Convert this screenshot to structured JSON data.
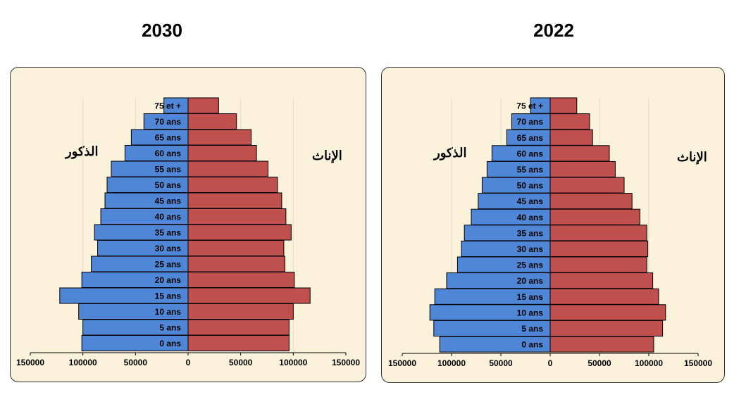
{
  "charts_meta": {
    "male_label": "الذكور",
    "female_label": "الإناث",
    "male_color": "#4f86d6",
    "female_color": "#c0504d",
    "background": "#fbf2dc"
  },
  "chart_data": [
    {
      "type": "bar",
      "orientation": "population-pyramid",
      "title": "2030",
      "categories": [
        "0 ans",
        "5 ans",
        "10 ans",
        "15 ans",
        "20 ans",
        "25 ans",
        "30 ans",
        "35 ans",
        "40 ans",
        "45 ans",
        "50 ans",
        "55 ans",
        "60 ans",
        "65 ans",
        "70 ans",
        "75 et +"
      ],
      "series": [
        {
          "name": "الذكور",
          "values": [
            101000,
            100000,
            104000,
            122000,
            101000,
            92000,
            86000,
            89000,
            83000,
            79000,
            77000,
            73000,
            60000,
            54000,
            42000,
            23000
          ]
        },
        {
          "name": "الإناث",
          "values": [
            96000,
            96000,
            100000,
            116000,
            101000,
            92000,
            91000,
            98000,
            93000,
            89000,
            85000,
            76000,
            65000,
            60000,
            46000,
            29000
          ]
        }
      ],
      "xticks": [
        "150000",
        "100000",
        "50000",
        "0",
        "50000",
        "100000",
        "150000"
      ],
      "xlim": [
        -150000,
        150000
      ]
    },
    {
      "type": "bar",
      "orientation": "population-pyramid",
      "title": "2022",
      "categories": [
        "0 ans",
        "5 ans",
        "10 ans",
        "15 ans",
        "20 ans",
        "25 ans",
        "30 ans",
        "35 ans",
        "40 ans",
        "45 ans",
        "50 ans",
        "55 ans",
        "60 ans",
        "65 ans",
        "70 ans",
        "75 et +"
      ],
      "series": [
        {
          "name": "الذكور",
          "values": [
            112000,
            118000,
            122000,
            117000,
            105000,
            94000,
            90000,
            87000,
            80000,
            73000,
            69000,
            64000,
            59000,
            44000,
            39000,
            20000
          ]
        },
        {
          "name": "الإناث",
          "values": [
            105000,
            114000,
            117000,
            110000,
            104000,
            98000,
            99000,
            98000,
            91000,
            83000,
            75000,
            66000,
            60000,
            43000,
            40000,
            27000
          ]
        }
      ],
      "xticks": [
        "150000",
        "100000",
        "50000",
        "0",
        "50000",
        "100000",
        "150000"
      ],
      "xlim": [
        -150000,
        150000
      ]
    }
  ]
}
